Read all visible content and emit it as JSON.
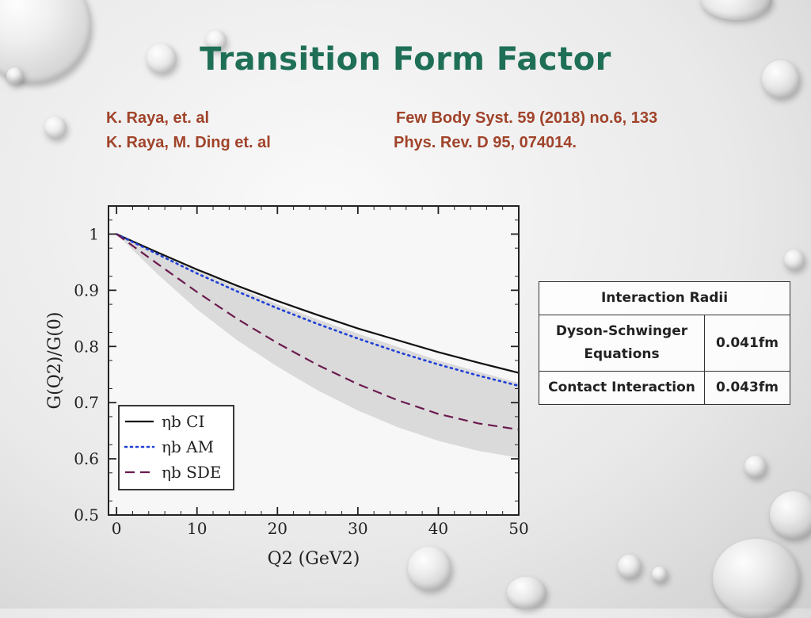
{
  "slide": {
    "title": "Transition Form Factor",
    "refs": [
      {
        "authors": "K. Raya, et. al",
        "journal": "Few Body Syst. 59 (2018) no.6, 133"
      },
      {
        "authors": "K. Raya, M. Ding et. al",
        "journal": "Phys. Rev. D 95, 074014."
      }
    ]
  },
  "table": {
    "header": "Interaction Radii",
    "rows": [
      {
        "label": "Dyson-Schwinger Equations",
        "value": "0.041fm"
      },
      {
        "label": "Contact Interaction",
        "value": "0.043fm"
      }
    ]
  },
  "chart_data": {
    "type": "line",
    "title": "",
    "xlabel": "Q2 (GeV2)",
    "ylabel": "G(Q2)/G(0)",
    "xlim": [
      -1,
      50
    ],
    "ylim": [
      0.5,
      1.05
    ],
    "x_ticks": [
      "0",
      "10",
      "20",
      "30",
      "40",
      "50"
    ],
    "y_ticks": [
      "0.5",
      "0.6",
      "0.7",
      "0.8",
      "0.9",
      "1"
    ],
    "x": [
      0,
      5,
      10,
      15,
      20,
      25,
      30,
      35,
      40,
      45,
      50
    ],
    "series": [
      {
        "name": "ηb CI",
        "line": "solid",
        "color": "#111111",
        "values": [
          1.0,
          0.968,
          0.937,
          0.908,
          0.881,
          0.856,
          0.832,
          0.811,
          0.79,
          0.771,
          0.753
        ]
      },
      {
        "name": "ηb AM",
        "line": "dotted",
        "color": "#1f3fd6",
        "values": [
          1.0,
          0.965,
          0.93,
          0.898,
          0.868,
          0.84,
          0.814,
          0.79,
          0.768,
          0.748,
          0.73
        ]
      },
      {
        "name": "ηb SDE",
        "line": "dashed",
        "color": "#6b1a4f",
        "values": [
          1.0,
          0.948,
          0.897,
          0.849,
          0.806,
          0.767,
          0.733,
          0.704,
          0.68,
          0.663,
          0.652
        ]
      }
    ],
    "band": {
      "upper": [
        1.0,
        0.966,
        0.935,
        0.905,
        0.875,
        0.848,
        0.823,
        0.799,
        0.775,
        0.755,
        0.735
      ],
      "lower": [
        1.0,
        0.93,
        0.866,
        0.811,
        0.764,
        0.722,
        0.686,
        0.656,
        0.632,
        0.614,
        0.602
      ],
      "color": "#d5d5d5"
    },
    "legend_position": "bottom-left"
  }
}
